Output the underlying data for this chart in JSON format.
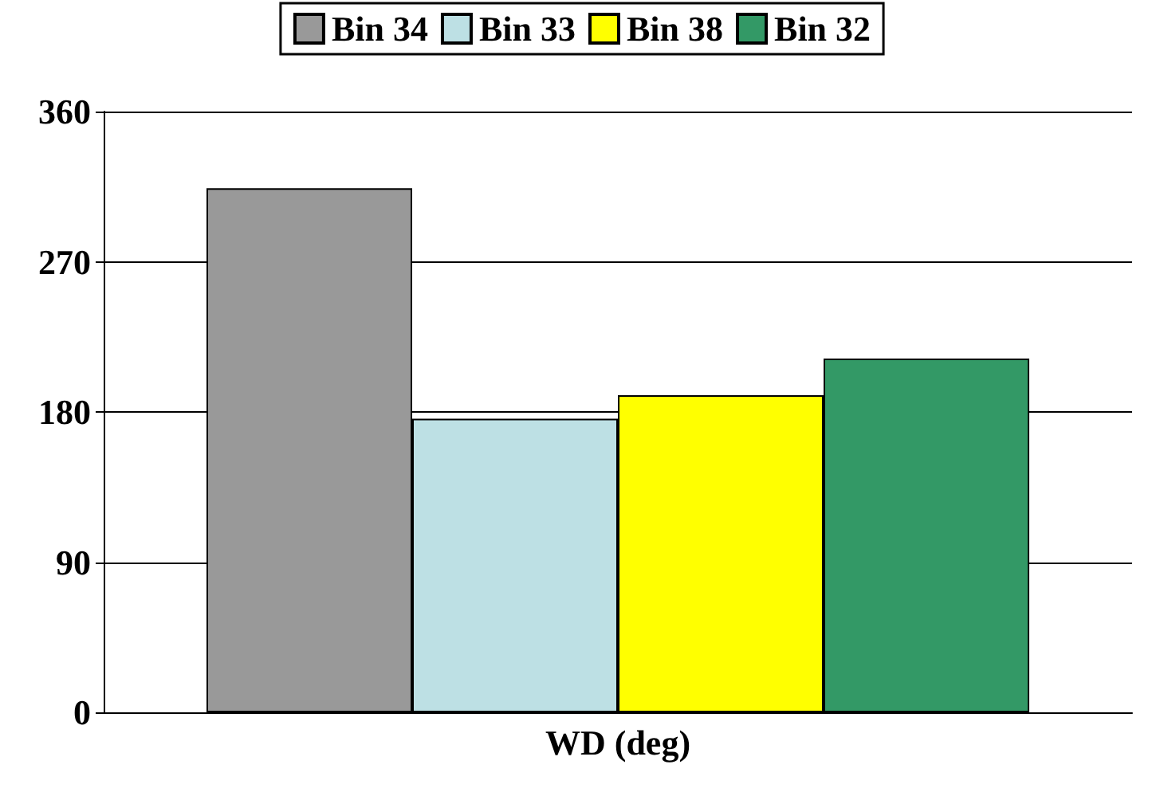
{
  "chart_data": {
    "type": "bar",
    "categories": [
      "WD (deg)"
    ],
    "series": [
      {
        "name": "Bin 34",
        "color": "#999999",
        "values": [
          314
        ]
      },
      {
        "name": "Bin 33",
        "color": "#bde0e4",
        "values": [
          176
        ]
      },
      {
        "name": "Bin 38",
        "color": "#ffff00",
        "values": [
          190
        ]
      },
      {
        "name": "Bin 32",
        "color": "#339966",
        "values": [
          212
        ]
      }
    ],
    "ylim": [
      0,
      360
    ],
    "yticks": [
      0,
      90,
      180,
      270,
      360
    ],
    "grid": "y",
    "legend": "top"
  }
}
